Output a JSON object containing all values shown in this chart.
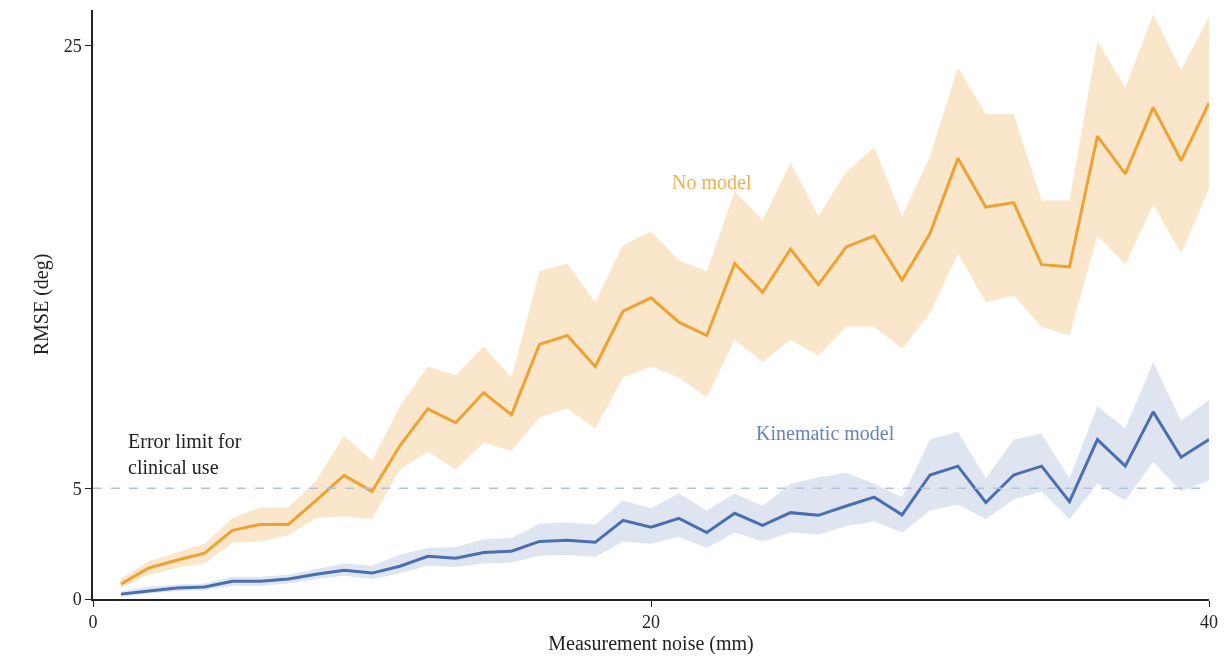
{
  "chart_data": {
    "type": "line",
    "xlabel": "Measurement noise (mm)",
    "ylabel": "RMSE (deg)",
    "x": [
      1,
      2,
      3,
      4,
      5,
      6,
      7,
      8,
      9,
      10,
      11,
      12,
      13,
      14,
      15,
      16,
      17,
      18,
      19,
      20,
      21,
      22,
      23,
      24,
      25,
      26,
      27,
      28,
      29,
      30,
      31,
      32,
      33,
      34,
      35,
      36,
      37,
      38,
      39,
      40
    ],
    "series": [
      {
        "name": "No model",
        "color": "#eea232",
        "values": [
          0.67,
          1.4,
          1.75,
          2.07,
          3.1,
          3.37,
          3.37,
          4.45,
          5.58,
          4.86,
          6.92,
          8.59,
          7.96,
          9.31,
          8.32,
          11.5,
          11.9,
          10.5,
          13.0,
          13.6,
          12.5,
          11.9,
          15.15,
          13.85,
          15.8,
          14.2,
          15.9,
          16.4,
          14.4,
          16.5,
          19.9,
          17.7,
          17.9,
          15.1,
          15.0,
          20.9,
          19.2,
          22.2,
          19.8,
          22.4
        ],
        "lower": [
          0.5,
          1.1,
          1.4,
          1.6,
          2.54,
          2.6,
          2.88,
          3.66,
          3.73,
          3.6,
          5.85,
          6.65,
          5.85,
          7.06,
          6.7,
          8.2,
          8.6,
          7.7,
          10.0,
          10.5,
          10.0,
          9.1,
          11.7,
          10.7,
          11.7,
          11.0,
          12.3,
          12.3,
          11.3,
          12.9,
          15.6,
          13.4,
          13.7,
          12.3,
          11.9,
          16.4,
          15.1,
          17.8,
          15.6,
          18.5
        ],
        "upper": [
          0.9,
          1.7,
          2.1,
          2.5,
          3.66,
          4.14,
          4.14,
          5.35,
          7.37,
          6.25,
          8.7,
          10.5,
          10.1,
          11.4,
          10.0,
          14.8,
          15.15,
          13.4,
          16.0,
          16.6,
          15.3,
          14.8,
          18.4,
          17.1,
          19.7,
          17.3,
          19.3,
          20.4,
          17.3,
          20.0,
          24.0,
          21.9,
          21.9,
          18.0,
          18.0,
          25.2,
          23.1,
          26.4,
          23.9,
          26.3
        ]
      },
      {
        "name": "Kinematic model",
        "color": "#4a6fb0",
        "values": [
          0.22,
          0.36,
          0.5,
          0.54,
          0.8,
          0.8,
          0.9,
          1.12,
          1.3,
          1.17,
          1.48,
          1.93,
          1.84,
          2.1,
          2.16,
          2.6,
          2.65,
          2.56,
          3.55,
          3.24,
          3.64,
          3.0,
          3.87,
          3.33,
          3.9,
          3.78,
          4.2,
          4.6,
          3.8,
          5.6,
          6.0,
          4.36,
          5.6,
          6.0,
          4.4,
          7.2,
          6.0,
          8.45,
          6.4,
          7.2
        ],
        "lower": [
          0.1,
          0.25,
          0.35,
          0.4,
          0.6,
          0.6,
          0.7,
          0.9,
          1.05,
          0.9,
          1.15,
          1.5,
          1.45,
          1.6,
          1.65,
          1.95,
          2.0,
          1.9,
          2.6,
          2.5,
          2.8,
          2.3,
          3.0,
          2.6,
          3.0,
          2.9,
          3.3,
          3.5,
          3.0,
          4.0,
          4.27,
          3.6,
          4.5,
          4.86,
          3.6,
          5.2,
          4.45,
          6.2,
          4.86,
          5.35
        ],
        "upper": [
          0.35,
          0.55,
          0.65,
          0.7,
          1.0,
          1.0,
          1.1,
          1.35,
          1.6,
          1.5,
          2.0,
          2.3,
          2.35,
          2.7,
          2.75,
          3.4,
          3.45,
          3.35,
          4.45,
          4.1,
          4.77,
          4.0,
          4.77,
          4.2,
          5.2,
          5.5,
          5.7,
          5.2,
          4.6,
          7.2,
          7.55,
          5.44,
          7.2,
          7.46,
          5.44,
          8.7,
          7.7,
          10.7,
          8.05,
          9.0
        ]
      }
    ],
    "ref_lines": [
      {
        "axis": "y",
        "value": 5,
        "label": "Error limit for\nclinical use",
        "color": "#b4c3dc",
        "line_style": "dashed"
      }
    ],
    "xlim": [
      0,
      40
    ],
    "xticks": [
      0,
      20,
      40
    ],
    "ylim": [
      0,
      26.6
    ],
    "yticks": [
      0,
      5,
      25
    ],
    "legend": false,
    "marker": "none",
    "line_style": "solid"
  }
}
